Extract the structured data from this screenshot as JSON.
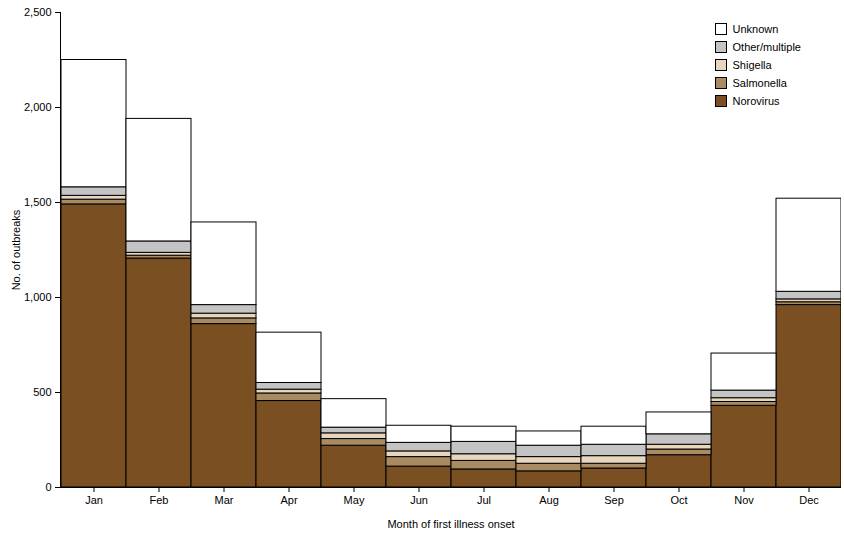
{
  "chart_data": {
    "type": "bar",
    "stacked": true,
    "legend": "top-right",
    "x_label": "Month of first illness onset",
    "y_label": "No. of outbreaks",
    "categories": [
      "Jan",
      "Feb",
      "Mar",
      "Apr",
      "May",
      "Jun",
      "Jul",
      "Aug",
      "Sep",
      "Oct",
      "Nov",
      "Dec"
    ],
    "series": [
      {
        "name": "Norovirus",
        "color": "#7a4f21",
        "values": [
          1490,
          1205,
          860,
          455,
          220,
          110,
          95,
          85,
          100,
          170,
          430,
          960
        ]
      },
      {
        "name": "Salmonella",
        "color": "#a88a63",
        "values": [
          25,
          15,
          30,
          40,
          35,
          50,
          45,
          40,
          25,
          30,
          20,
          15
        ]
      },
      {
        "name": "Shigella",
        "color": "#e8d5bd",
        "values": [
          20,
          15,
          25,
          20,
          30,
          30,
          35,
          35,
          40,
          25,
          20,
          15
        ]
      },
      {
        "name": "Other/multiple",
        "color": "#c4c4c4",
        "values": [
          45,
          60,
          45,
          35,
          30,
          45,
          65,
          60,
          60,
          55,
          40,
          40
        ]
      },
      {
        "name": "Unknown",
        "color": "#ffffff",
        "values": [
          670,
          645,
          435,
          265,
          150,
          90,
          80,
          75,
          95,
          115,
          195,
          490
        ]
      }
    ],
    "ylim": [
      0,
      2500
    ],
    "yticks": [
      0,
      500,
      {
        "value": 1000,
        "label": "1,000"
      },
      {
        "value": 1500,
        "label": "1,500"
      },
      {
        "value": 2000,
        "label": "2,000"
      },
      {
        "value": 2500,
        "label": "2,500"
      }
    ]
  }
}
